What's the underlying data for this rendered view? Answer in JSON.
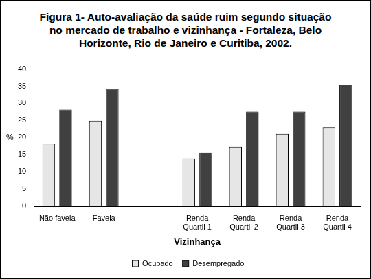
{
  "chart_data": {
    "type": "bar",
    "title": "Figura 1- Auto-avaliação da saúde ruim segundo situação no mercado de trabalho e vizinhança - Fortaleza, Belo Horizonte, Rio de Janeiro e Curitiba, 2002.",
    "x_label": "Vizinhança",
    "y_label": "%",
    "categories": [
      "Não favela",
      "Favela",
      null,
      "Renda Quartil 1",
      "Renda Quartil 2",
      "Renda Quartil 3",
      "Renda Quartil 4"
    ],
    "series": [
      {
        "name": "Ocupado",
        "color": "#e6e6e6",
        "values": [
          18.2,
          24.9,
          null,
          13.9,
          17.3,
          21.1,
          23.0
        ]
      },
      {
        "name": "Desempregado",
        "color": "#404040",
        "values": [
          28.2,
          34.2,
          null,
          15.7,
          27.6,
          27.6,
          35.5
        ]
      }
    ],
    "ylim": [
      0,
      40
    ],
    "yticks": [
      0,
      5,
      10,
      15,
      20,
      25,
      30,
      35,
      40
    ],
    "grid": false,
    "legend": "bottom"
  }
}
